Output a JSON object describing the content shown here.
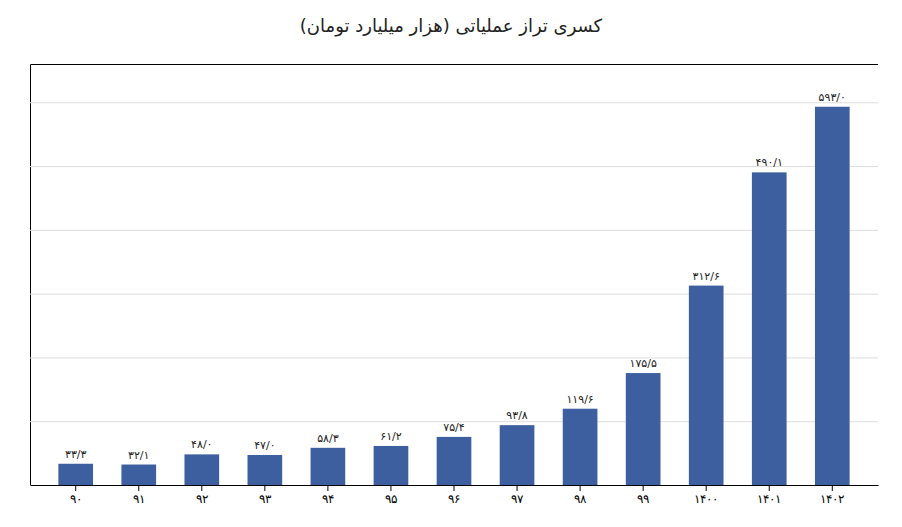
{
  "chart_data": {
    "type": "bar",
    "title": "کسری تراز عملیاتی (هزار میلیارد تومان)",
    "categories": [
      "۹۰",
      "۹۱",
      "۹۲",
      "۹۳",
      "۹۴",
      "۹۵",
      "۹۶",
      "۹۷",
      "۹۸",
      "۹۹",
      "۱۴۰۰",
      "۱۴۰۱",
      "۱۴۰۲"
    ],
    "values": [
      33.3,
      32.1,
      48.0,
      47.0,
      58.3,
      61.2,
      75.4,
      93.8,
      119.6,
      175.5,
      312.6,
      490.1,
      593.0
    ],
    "value_labels": [
      "۳۳/۳",
      "۳۲/۱",
      "۴۸/۰",
      "۴۷/۰",
      "۵۸/۳",
      "۶۱/۲",
      "۷۵/۴",
      "۹۳/۸",
      "۱۱۹/۶",
      "۱۷۵/۵",
      "۳۱۲/۶",
      "۴۹۰/۱",
      "۵۹۳/۰"
    ],
    "data_labels": true,
    "color": "#3d5fa0",
    "ylim": [
      0,
      660
    ],
    "yticks": [
      0,
      100,
      200,
      300,
      400,
      500,
      600
    ],
    "grid": true,
    "tick_labels": "x"
  }
}
